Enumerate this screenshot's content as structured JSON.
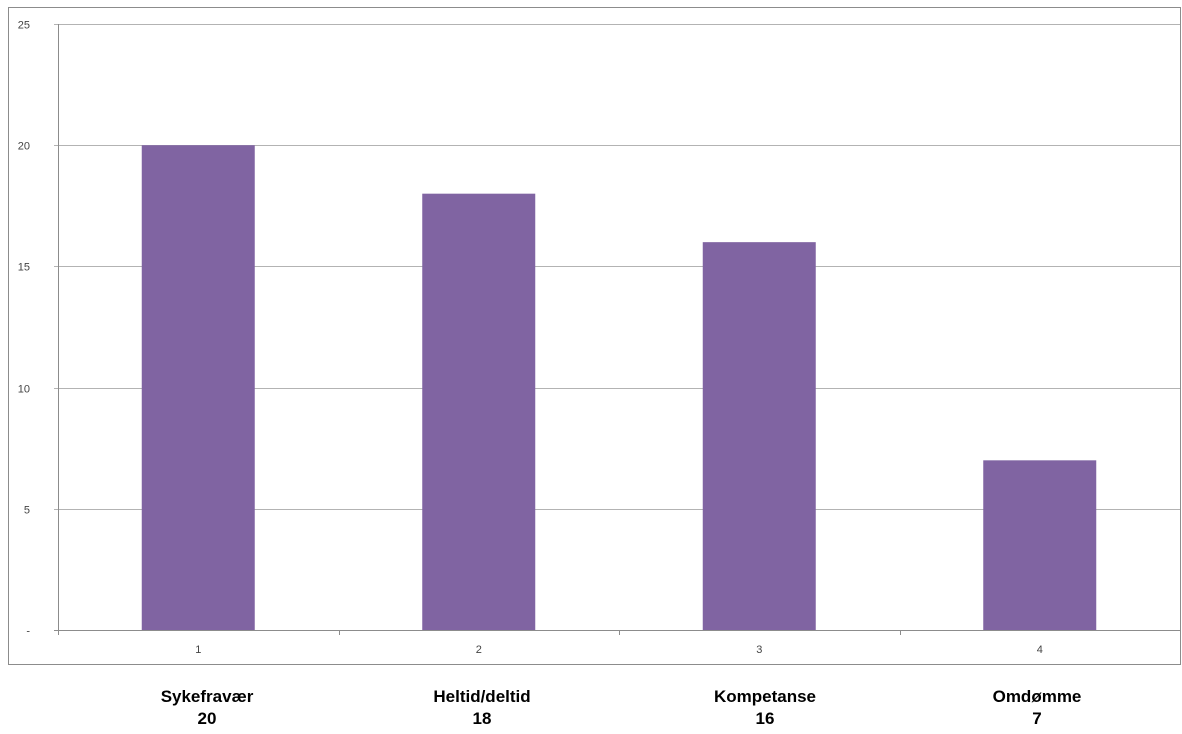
{
  "chart_data": {
    "type": "bar",
    "categories": [
      "1",
      "2",
      "3",
      "4"
    ],
    "values": [
      20,
      18,
      16,
      7
    ],
    "ylim": [
      0,
      25
    ],
    "yticks": [
      "-",
      "5",
      "10",
      "15",
      "20",
      "25"
    ],
    "grid": true,
    "legend": "none",
    "bar_color": "#8064A2",
    "title": "",
    "xlabel": "",
    "ylabel": ""
  },
  "labels": [
    {
      "name": "Sykefravær",
      "value": "20"
    },
    {
      "name": "Heltid/deltid",
      "value": "18"
    },
    {
      "name": "Kompetanse",
      "value": "16"
    },
    {
      "name": "Omdømme",
      "value": "7"
    }
  ]
}
